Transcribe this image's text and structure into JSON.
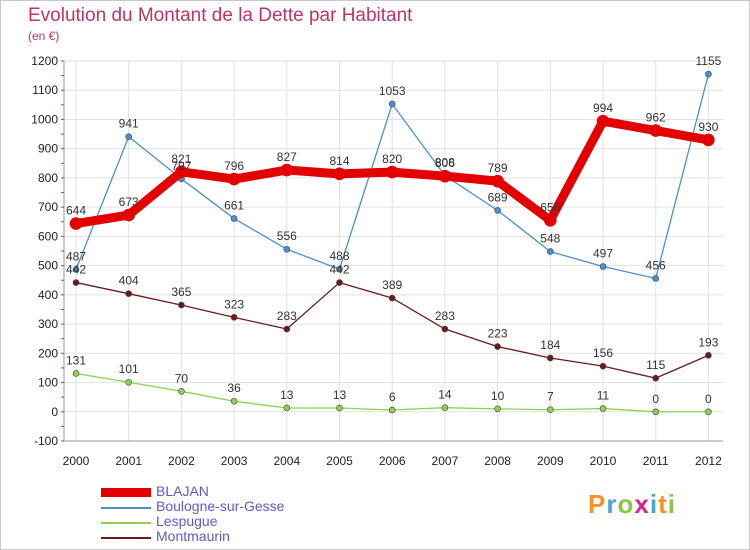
{
  "title": "Evolution du Montant de la Dette par Habitant",
  "unit": "(en €)",
  "logo": "Proxiti",
  "chart_data": {
    "type": "line",
    "x": [
      "2000",
      "2001",
      "2002",
      "2003",
      "2004",
      "2005",
      "2006",
      "2007",
      "2008",
      "2009",
      "2010",
      "2011",
      "2012"
    ],
    "ylim": [
      -100,
      1200
    ],
    "yticks": [
      -100,
      0,
      100,
      200,
      300,
      400,
      500,
      600,
      700,
      800,
      900,
      1000,
      1100,
      1200
    ],
    "grid": true,
    "legend_position": "bottom-left",
    "series": [
      {
        "name": "BLAJAN",
        "color": "#e30000",
        "values": [
          644,
          673,
          821,
          796,
          827,
          814,
          820,
          806,
          789,
          655,
          994,
          962,
          930
        ]
      },
      {
        "name": "Boulogne-sur-Gesse",
        "color": "#4a90d0",
        "values": [
          487,
          941,
          797,
          661,
          556,
          488,
          1053,
          808,
          689,
          548,
          497,
          456,
          1155
        ]
      },
      {
        "name": "Lespugue",
        "color": "#8fd14f",
        "values": [
          131,
          101,
          70,
          36,
          13,
          13,
          6,
          14,
          10,
          7,
          11,
          0,
          0
        ]
      },
      {
        "name": "Montmaurin",
        "color": "#6b1a1a",
        "values": [
          442,
          404,
          365,
          323,
          283,
          442,
          389,
          283,
          223,
          184,
          156,
          115,
          193
        ]
      }
    ]
  }
}
